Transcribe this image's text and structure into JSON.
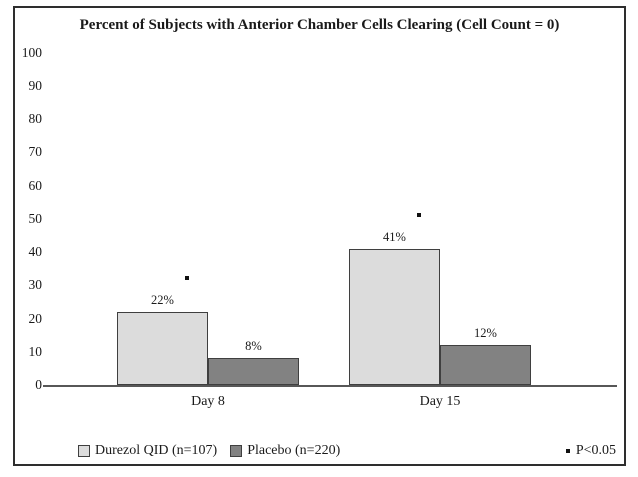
{
  "chart_data": {
    "type": "bar",
    "title": "Percent of Subjects with Anterior Chamber Cells Clearing (Cell Count = 0)",
    "categories": [
      "Day 8",
      "Day 15"
    ],
    "series": [
      {
        "name": "Durezol QID (n=107)",
        "color": "#dcdcdc",
        "values": [
          22,
          41
        ],
        "value_labels": [
          "22%",
          "41%"
        ],
        "significance_marked": [
          true,
          true
        ]
      },
      {
        "name": "Placebo (n=220)",
        "color": "#828282",
        "values": [
          8,
          12
        ],
        "value_labels": [
          "8%",
          "12%"
        ],
        "significance_marked": [
          false,
          false
        ]
      }
    ],
    "xlabel": "",
    "ylabel": "",
    "ylim": [
      0,
      100
    ],
    "yticks": [
      0,
      10,
      20,
      30,
      40,
      50,
      60,
      70,
      80,
      90,
      100
    ],
    "grid": false,
    "legend_position": "bottom-left",
    "footnote": {
      "marker": "*",
      "text": "P<0.05"
    }
  },
  "legend": {
    "items": [
      {
        "label": "Durezol QID (n=107)",
        "color": "#dcdcdc"
      },
      {
        "label": "Placebo (n=220)",
        "color": "#828282"
      }
    ]
  },
  "footnote": {
    "marker": "*",
    "text": "P<0.05"
  }
}
